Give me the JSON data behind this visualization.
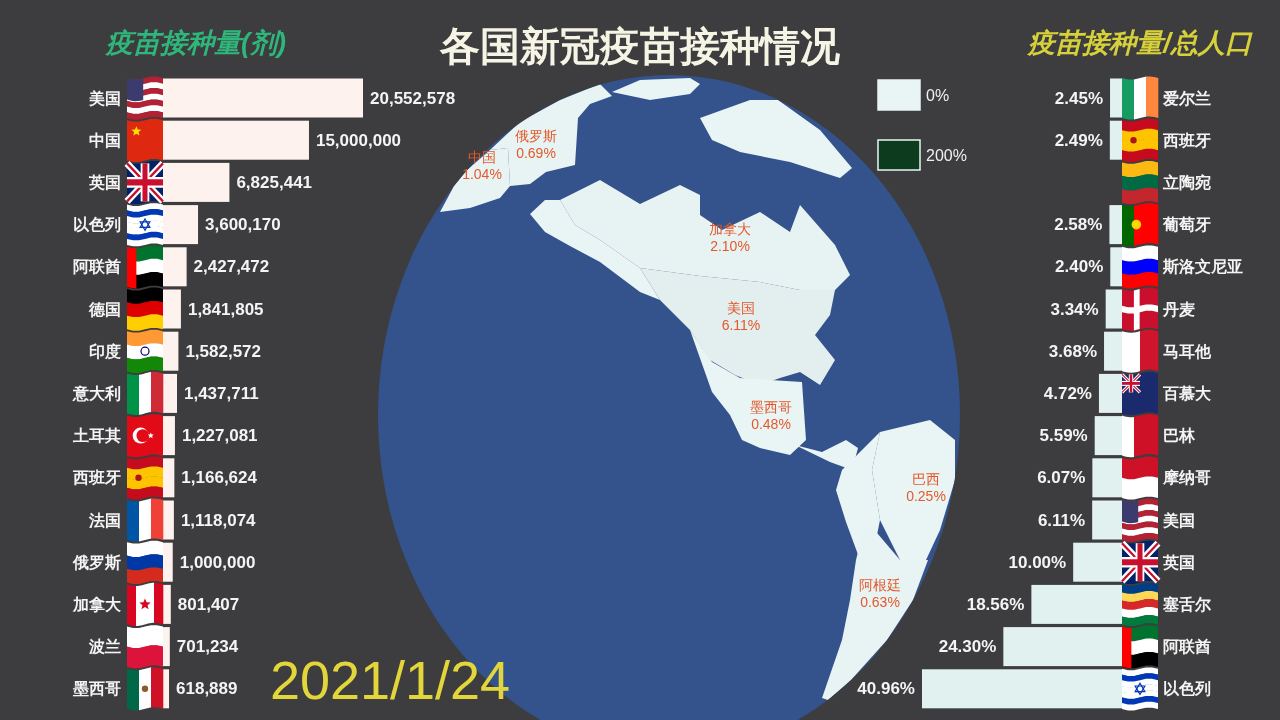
{
  "chart_data": [
    {
      "type": "bar",
      "orientation": "horizontal",
      "title": "疫苗接种量(剂)",
      "categories": [
        "美国",
        "中国",
        "英国",
        "以色列",
        "阿联酋",
        "德国",
        "印度",
        "意大利",
        "土耳其",
        "西班牙",
        "法国",
        "俄罗斯",
        "加拿大",
        "波兰",
        "墨西哥"
      ],
      "values": [
        20552578,
        15000000,
        6825441,
        3600170,
        2427472,
        1841805,
        1582572,
        1437711,
        1227081,
        1166624,
        1118074,
        1000000,
        801407,
        701234,
        618889
      ],
      "value_labels": [
        "20,552,578",
        "15,000,000",
        "6,825,441",
        "3,600,170",
        "2,427,472",
        "1,841,805",
        "1,582,572",
        "1,437,711",
        "1,227,081",
        "1,166,624",
        "1,118,074",
        "1,000,000",
        "801,407",
        "701,234",
        "618,889"
      ],
      "color": "#fdf2ed"
    },
    {
      "type": "other",
      "title": "各国新冠疫苗接种情况",
      "categories": [
        "中国",
        "俄罗斯",
        "加拿大",
        "美国",
        "墨西哥",
        "巴西",
        "阿根廷"
      ],
      "values": [
        1.04,
        0.69,
        2.1,
        6.11,
        0.48,
        0.25,
        0.63
      ],
      "value_labels": [
        "1.04%",
        "0.69%",
        "2.10%",
        "6.11%",
        "0.48%",
        "0.25%",
        "0.63%"
      ],
      "annotations": [
        "2021/1/24",
        "0%",
        "200%"
      ]
    },
    {
      "type": "bar",
      "orientation": "horizontal",
      "title": "疫苗接种量/总人口",
      "categories": [
        "爱尔兰",
        "西班牙",
        "立陶宛",
        "葡萄牙",
        "斯洛文尼亚",
        "丹麦",
        "马耳他",
        "百慕大",
        "巴林",
        "摩纳哥",
        "美国",
        "英国",
        "塞舌尔",
        "阿联酋",
        "以色列"
      ],
      "values": [
        2.45,
        2.49,
        null,
        2.58,
        2.4,
        3.34,
        3.68,
        4.72,
        5.59,
        6.07,
        6.11,
        10.0,
        18.56,
        24.3,
        40.96
      ],
      "value_labels": [
        "2.45%",
        "2.49%",
        null,
        "2.58%",
        "2.40%",
        "3.34%",
        "3.68%",
        "4.72%",
        "5.59%",
        "6.07%",
        "6.11%",
        "10.00%",
        "18.56%",
        "24.30%",
        "40.96%"
      ],
      "color": "#e1f1f0"
    }
  ]
}
